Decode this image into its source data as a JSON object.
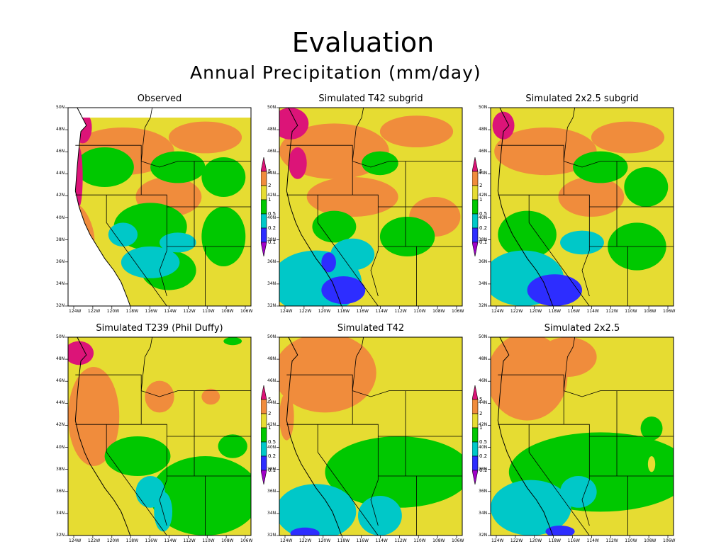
{
  "slide": {
    "title": "Evaluation",
    "subtitle": "Annual Precipitation (mm/day)"
  },
  "colors": {
    "lt0_1": "#a000c8",
    "c0_1_0_2": "#2d2dff",
    "c0_2_0_5": "#00c8c8",
    "c0_5_1": "#00c800",
    "c1_2": "#e6dc32",
    "c2_5": "#f08c3c",
    "gt5": "#dc1478"
  },
  "colorbar": {
    "levels": [
      "5",
      "2",
      "1",
      "0.5",
      "0.2",
      "0.1"
    ]
  },
  "axes": {
    "lat_ticks": [
      "50N",
      "48N",
      "46N",
      "44N",
      "42N",
      "40N",
      "38N",
      "36N",
      "34N",
      "32N"
    ],
    "lon_ticks": [
      "124W",
      "122W",
      "120W",
      "118W",
      "116W",
      "114W",
      "112W",
      "110W",
      "108W",
      "106W"
    ]
  },
  "panels": [
    {
      "id": "observed",
      "title": "Observed",
      "base": "c1_2",
      "ocean_white": true
    },
    {
      "id": "t42-subgrid",
      "title": "Simulated T42 subgrid",
      "base": "c1_2",
      "ocean_white": false
    },
    {
      "id": "2x25-subgrid",
      "title": "Simulated 2x2.5 subgrid",
      "base": "c1_2",
      "ocean_white": false
    },
    {
      "id": "t239",
      "title": "Simulated T239 (Phil Duffy)",
      "base": "c1_2",
      "ocean_white": false
    },
    {
      "id": "t42",
      "title": "Simulated T42",
      "base": "c1_2",
      "ocean_white": false
    },
    {
      "id": "2x25",
      "title": "Simulated 2x2.5",
      "base": "c1_2",
      "ocean_white": false
    }
  ]
}
